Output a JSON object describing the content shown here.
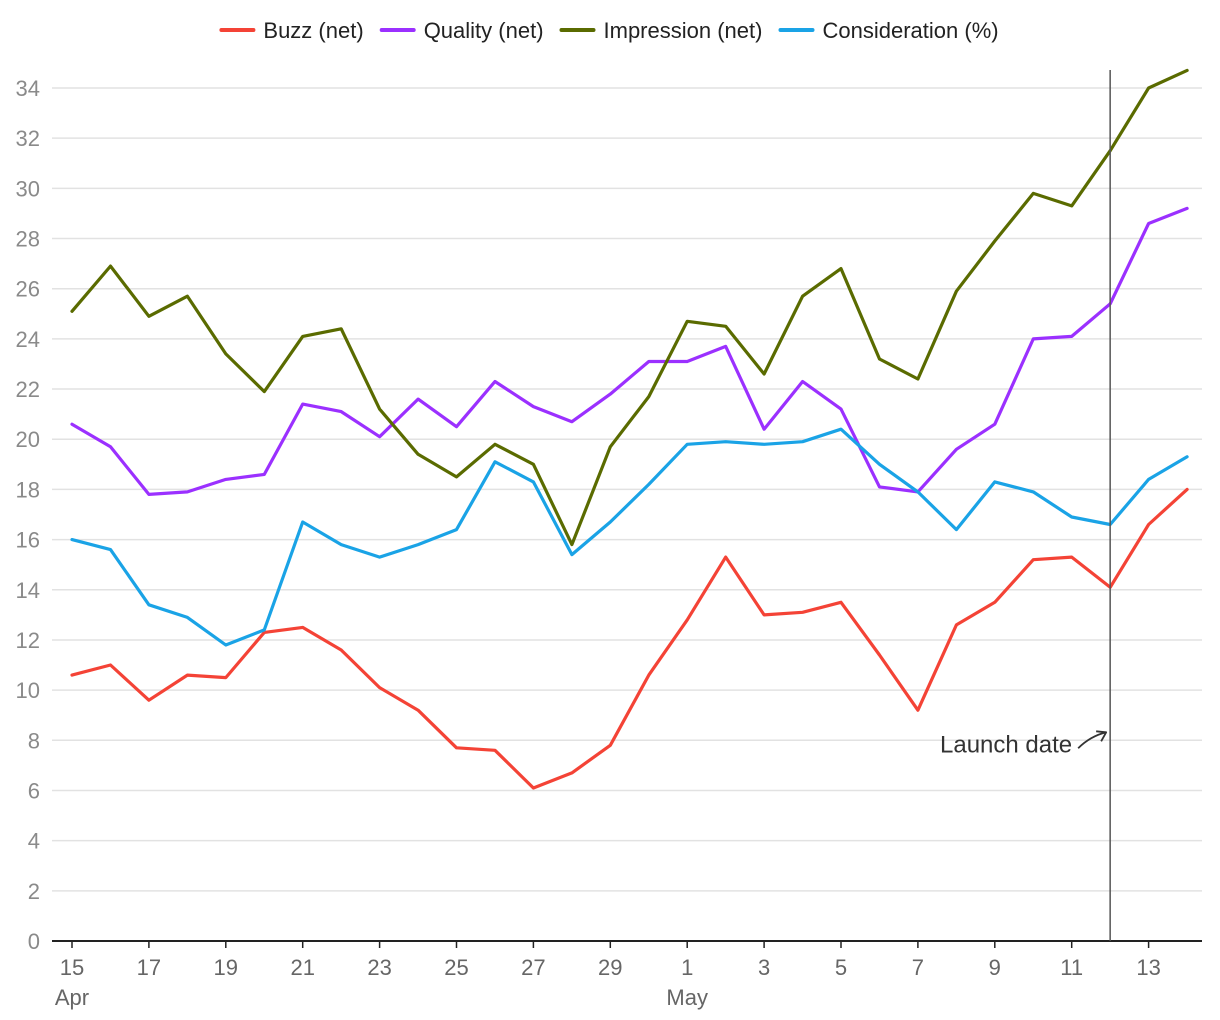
{
  "chart_data": {
    "type": "line",
    "title": "",
    "xlabel": "",
    "ylabel": "",
    "ylim": [
      0,
      34
    ],
    "yticks": [
      0,
      2,
      4,
      6,
      8,
      10,
      12,
      14,
      16,
      18,
      20,
      22,
      24,
      26,
      28,
      30,
      32,
      34
    ],
    "grid": true,
    "legend_position": "top",
    "x": [
      "15 Apr",
      "16 Apr",
      "17 Apr",
      "18 Apr",
      "19 Apr",
      "20 Apr",
      "21 Apr",
      "22 Apr",
      "23 Apr",
      "24 Apr",
      "25 Apr",
      "26 Apr",
      "27 Apr",
      "28 Apr",
      "29 Apr",
      "30 Apr",
      "1 May",
      "2 May",
      "3 May",
      "4 May",
      "5 May",
      "6 May",
      "7 May",
      "8 May",
      "9 May",
      "10 May",
      "11 May",
      "12 May",
      "13 May",
      "14 May"
    ],
    "x_tick_labels": [
      {
        "index": 0,
        "label": "15",
        "sublabel": "Apr"
      },
      {
        "index": 2,
        "label": "17"
      },
      {
        "index": 4,
        "label": "19"
      },
      {
        "index": 6,
        "label": "21"
      },
      {
        "index": 8,
        "label": "23"
      },
      {
        "index": 10,
        "label": "25"
      },
      {
        "index": 12,
        "label": "27"
      },
      {
        "index": 14,
        "label": "29"
      },
      {
        "index": 16,
        "label": "1",
        "sublabel": "May"
      },
      {
        "index": 18,
        "label": "3"
      },
      {
        "index": 20,
        "label": "5"
      },
      {
        "index": 22,
        "label": "7"
      },
      {
        "index": 24,
        "label": "9"
      },
      {
        "index": 26,
        "label": "11"
      },
      {
        "index": 28,
        "label": "13"
      }
    ],
    "series": [
      {
        "name": "Buzz (net)",
        "color": "#f44336",
        "values": [
          10.6,
          11.0,
          9.6,
          10.6,
          10.5,
          12.3,
          12.5,
          11.6,
          10.1,
          9.2,
          7.7,
          7.6,
          6.1,
          6.7,
          7.8,
          10.6,
          12.8,
          15.3,
          13.0,
          13.1,
          13.5,
          11.4,
          9.2,
          12.6,
          13.5,
          15.2,
          15.3,
          14.1,
          16.6,
          18.0
        ]
      },
      {
        "name": "Quality (net)",
        "color": "#9b30ff",
        "values": [
          20.6,
          19.7,
          17.8,
          17.9,
          18.4,
          18.6,
          21.4,
          21.1,
          20.1,
          21.6,
          20.5,
          22.3,
          21.3,
          20.7,
          21.8,
          23.1,
          23.1,
          23.7,
          20.4,
          22.3,
          21.2,
          18.1,
          17.9,
          19.6,
          20.6,
          24.0,
          24.1,
          25.4,
          28.6,
          29.2
        ]
      },
      {
        "name": "Impression (net)",
        "color": "#5a6b00",
        "values": [
          25.1,
          26.9,
          24.9,
          25.7,
          23.4,
          21.9,
          24.1,
          24.4,
          21.2,
          19.4,
          18.5,
          19.8,
          19.0,
          15.8,
          19.7,
          21.7,
          24.7,
          24.5,
          22.6,
          25.7,
          26.8,
          23.2,
          22.4,
          25.9,
          27.9,
          29.8,
          29.3,
          31.5,
          34.0,
          34.7
        ]
      },
      {
        "name": "Consideration (%)",
        "color": "#1aa3e6",
        "values": [
          16.0,
          15.6,
          13.4,
          12.9,
          11.8,
          12.4,
          16.7,
          15.8,
          15.3,
          15.8,
          16.4,
          19.1,
          18.3,
          15.4,
          16.7,
          18.2,
          19.8,
          19.9,
          19.8,
          19.9,
          20.4,
          19.0,
          17.9,
          16.4,
          18.3,
          17.9,
          16.9,
          16.6,
          18.4,
          19.3
        ]
      }
    ],
    "annotations": [
      {
        "text": "Launch date",
        "x_index": 27,
        "y": 8.0,
        "type": "vertical-line"
      }
    ]
  }
}
